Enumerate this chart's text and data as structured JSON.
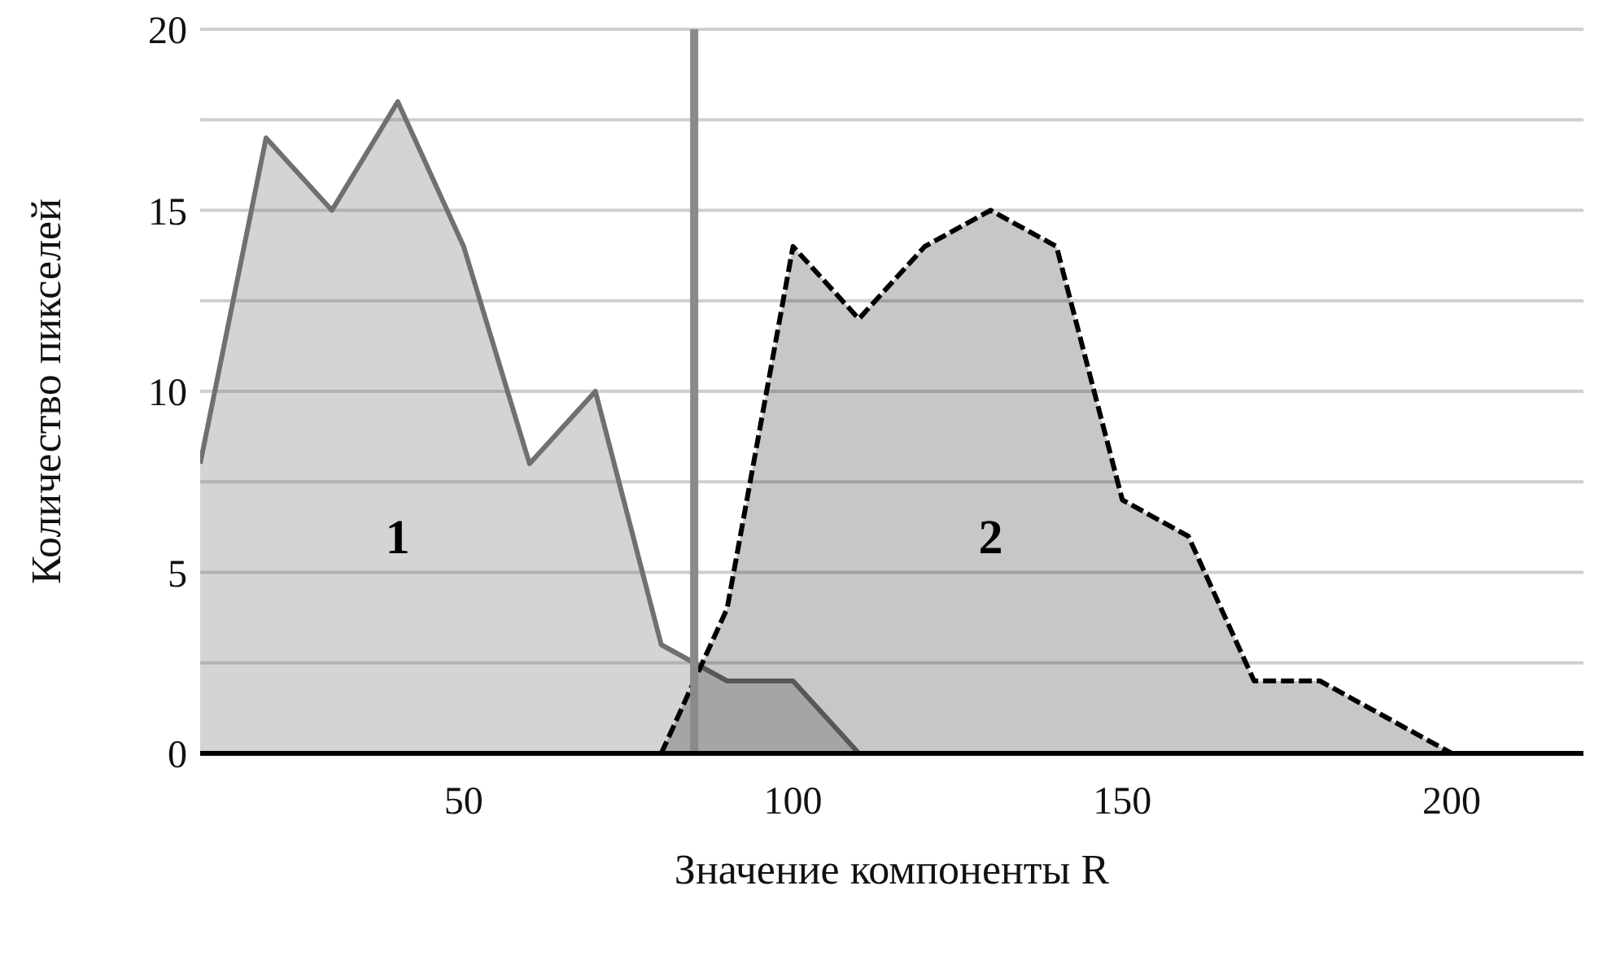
{
  "chart_data": {
    "type": "area",
    "xlabel": "Значение компоненты R",
    "ylabel": "Количество пикселей",
    "x": [
      10,
      20,
      30,
      40,
      50,
      60,
      70,
      80,
      90,
      100,
      110,
      120,
      130,
      140,
      150,
      160,
      170,
      180,
      190,
      200,
      210,
      220
    ],
    "series": [
      {
        "color": "#707070",
        "values": [
          8,
          17,
          15,
          18,
          14,
          8,
          10,
          3,
          2,
          2,
          0,
          null,
          null,
          null,
          null,
          null,
          null,
          null,
          null,
          null,
          null,
          null
        ]
      },
      {
        "color": "#000000",
        "line_style": "dashed",
        "values": [
          null,
          null,
          null,
          null,
          null,
          null,
          null,
          0,
          4,
          14,
          12,
          14,
          15,
          14,
          7,
          6,
          2,
          2,
          1,
          0,
          0,
          0
        ]
      }
    ],
    "xlim": [
      10,
      220
    ],
    "xticks": [
      50,
      100,
      150,
      200
    ],
    "ylim": [
      0,
      20
    ],
    "yticks": [
      0,
      {
        "value": 2.5,
        "label": null
      },
      5,
      {
        "value": 7.5,
        "label": null
      },
      10,
      {
        "value": 12.5,
        "label": null
      },
      15,
      {
        "value": 17.5,
        "label": null
      },
      20
    ],
    "grid": "y",
    "ref_lines": [
      {
        "axis": "x",
        "value": 85,
        "color": "#8a8a8a"
      }
    ],
    "annotations": [
      "1",
      "2"
    ]
  }
}
